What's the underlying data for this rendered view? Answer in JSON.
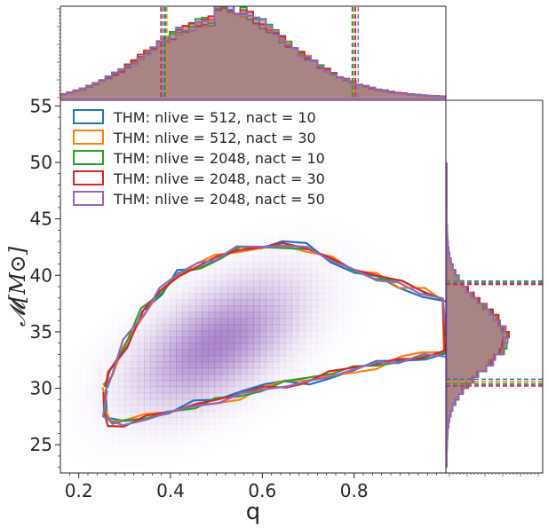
{
  "chart_data": {
    "type": "corner-density",
    "xlabel": "q",
    "ylabel": "𝓜[M⊙]",
    "xlim": [
      0.16,
      1.0
    ],
    "ylim": [
      22.5,
      55.5
    ],
    "x_ticks": [
      "0.2",
      "0.4",
      "0.6",
      "0.8"
    ],
    "x_tick_values": [
      0.2,
      0.4,
      0.6,
      0.8
    ],
    "y_ticks": [
      "25",
      "30",
      "35",
      "40",
      "45",
      "50",
      "55"
    ],
    "y_tick_values": [
      25,
      30,
      35,
      40,
      45,
      50,
      55
    ],
    "density_peak": {
      "q": 0.5,
      "chirp_mass": 34
    },
    "density_color": "#9467bd",
    "series": [
      {
        "name": "THM: nlive = 512, nact = 10",
        "color": "#1f77b4",
        "q_bounds": [
          0.387,
          0.797
        ],
        "mc_bounds": [
          30.8,
          39.3
        ],
        "contour_jitter": 0.55
      },
      {
        "name": "THM: nlive = 512, nact = 30",
        "color": "#ff7f0e",
        "q_bounds": [
          0.392,
          0.801
        ],
        "mc_bounds": [
          30.6,
          39.2
        ],
        "contour_jitter": 0.45
      },
      {
        "name": "THM: nlive = 2048, nact = 10",
        "color": "#2ca02c",
        "q_bounds": [
          0.389,
          0.796
        ],
        "mc_bounds": [
          30.4,
          39.5
        ],
        "contour_jitter": 0.3
      },
      {
        "name": "THM: nlive = 2048, nact = 30",
        "color": "#d62728",
        "q_bounds": [
          0.379,
          0.803
        ],
        "mc_bounds": [
          30.2,
          39.2
        ],
        "contour_jitter": 0.35
      },
      {
        "name": "THM: nlive = 2048, nact = 50",
        "color": "#9467bd",
        "q_bounds": [
          0.383,
          0.809
        ],
        "mc_bounds": [
          30.3,
          39.4
        ],
        "contour_jitter": 0.3
      }
    ]
  }
}
